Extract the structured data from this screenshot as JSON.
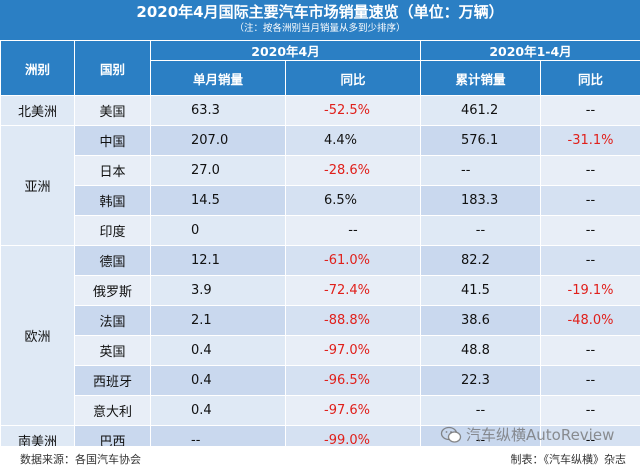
{
  "title": {
    "main": "2020年4月国际主要汽车市场销量速览（单位：万辆）",
    "note": "（注：按各洲别当月销量从多到少排序）"
  },
  "header": {
    "continent": "洲别",
    "country": "国别",
    "period_month": "2020年4月",
    "period_ytd": "2020年1-4月",
    "monthly_sales": "单月销量",
    "yoy": "同比",
    "cumulative_sales": "累计销量",
    "yoy_ytd": "同比"
  },
  "continents": {
    "north_america": "北美洲",
    "asia": "亚洲",
    "europe": "欧洲",
    "south_america": "南美洲"
  },
  "rows": [
    {
      "country": "美国",
      "month": "63.3",
      "yoy": "-52.5%",
      "ytd": "461.2",
      "ytd_yoy": "--"
    },
    {
      "country": "中国",
      "month": "207.0",
      "yoy": "4.4%",
      "ytd": "576.1",
      "ytd_yoy": "-31.1%"
    },
    {
      "country": "日本",
      "month": "27.0",
      "yoy": "-28.6%",
      "ytd": "--",
      "ytd_yoy": "--"
    },
    {
      "country": "韩国",
      "month": "14.5",
      "yoy": "6.5%",
      "ytd": "183.3",
      "ytd_yoy": "--"
    },
    {
      "country": "印度",
      "month": "0",
      "yoy": "--",
      "ytd": "--",
      "ytd_yoy": "--"
    },
    {
      "country": "德国",
      "month": "12.1",
      "yoy": "-61.0%",
      "ytd": "82.2",
      "ytd_yoy": "--"
    },
    {
      "country": "俄罗斯",
      "month": "3.9",
      "yoy": "-72.4%",
      "ytd": "41.5",
      "ytd_yoy": "-19.1%"
    },
    {
      "country": "法国",
      "month": "2.1",
      "yoy": "-88.8%",
      "ytd": "38.6",
      "ytd_yoy": "-48.0%"
    },
    {
      "country": "英国",
      "month": "0.4",
      "yoy": "-97.0%",
      "ytd": "48.8",
      "ytd_yoy": "--"
    },
    {
      "country": "西班牙",
      "month": "0.4",
      "yoy": "-96.5%",
      "ytd": "22.3",
      "ytd_yoy": "--"
    },
    {
      "country": "意大利",
      "month": "0.4",
      "yoy": "-97.6%",
      "ytd": "--",
      "ytd_yoy": "--"
    },
    {
      "country": "巴西",
      "month": "--",
      "yoy": "-99.0%",
      "ytd": "--",
      "ytd_yoy": "--"
    }
  ],
  "footer": {
    "source": "数据来源：各国汽车协会",
    "maker": "制表：《汽车纵横》杂志",
    "watermark": "汽车纵横AutoReview"
  },
  "colors": {
    "header_blue": "#2b7fc4",
    "negative_red": "#e0201b"
  },
  "icons": {
    "watermark": "wechat-icon"
  }
}
